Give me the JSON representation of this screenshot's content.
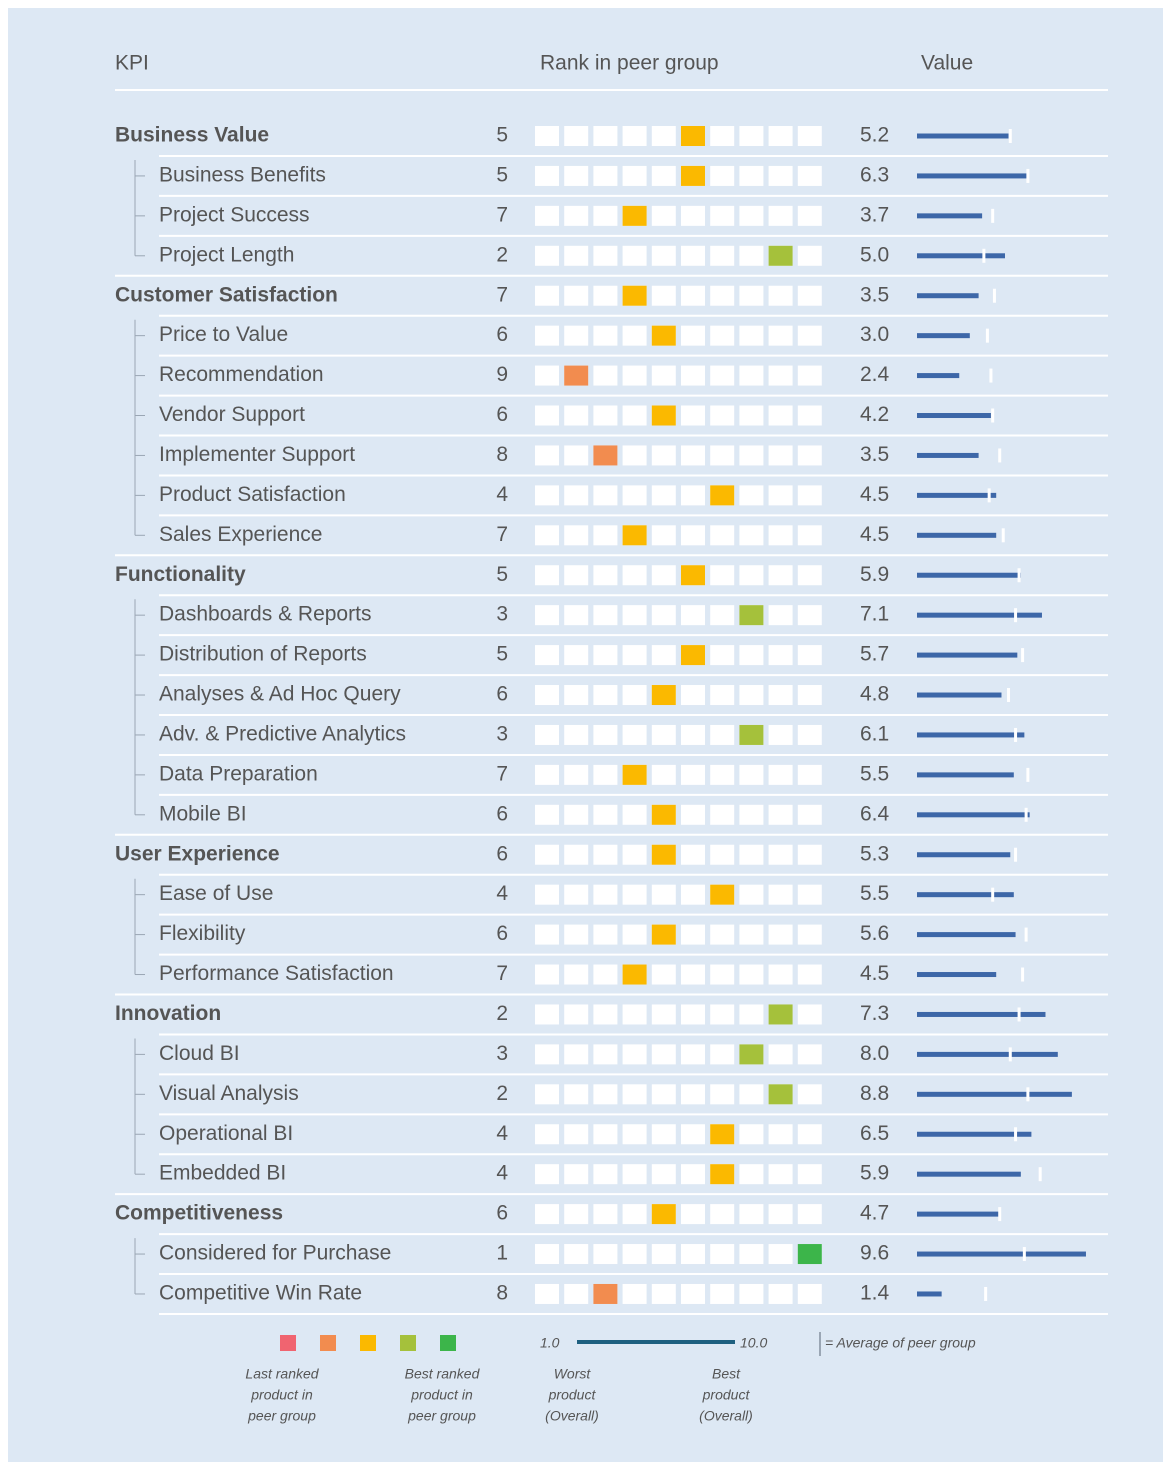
{
  "header": {
    "kpi": "KPI",
    "rank": "Rank in peer group",
    "value": "Value"
  },
  "rows": [
    {
      "label": "Business Value",
      "group": true,
      "rank": 5,
      "color": "#fbb900",
      "value": 5.2,
      "value_label": "5.2",
      "peer_avg": 5.3
    },
    {
      "label": "Business Benefits",
      "group": false,
      "rank": 5,
      "color": "#fbb900",
      "value": 6.3,
      "value_label": "6.3",
      "peer_avg": 6.3
    },
    {
      "label": "Project Success",
      "group": false,
      "rank": 7,
      "color": "#fbb900",
      "value": 3.7,
      "value_label": "3.7",
      "peer_avg": 4.3
    },
    {
      "label": "Project Length",
      "group": false,
      "rank": 2,
      "color": "#a5c13b",
      "value": 5,
      "value_label": "5.0",
      "peer_avg": 3.8
    },
    {
      "label": "Customer Satisfaction",
      "group": true,
      "rank": 7,
      "color": "#fbb900",
      "value": 3.5,
      "value_label": "3.5",
      "peer_avg": 4.4
    },
    {
      "label": "Price to Value",
      "group": false,
      "rank": 6,
      "color": "#fbb900",
      "value": 3,
      "value_label": "3.0",
      "peer_avg": 4.0
    },
    {
      "label": "Recommendation",
      "group": false,
      "rank": 9,
      "color": "#f28c4f",
      "value": 2.4,
      "value_label": "2.4",
      "peer_avg": 4.2
    },
    {
      "label": "Vendor Support",
      "group": false,
      "rank": 6,
      "color": "#fbb900",
      "value": 4.2,
      "value_label": "4.2",
      "peer_avg": 4.3
    },
    {
      "label": "Implementer Support",
      "group": false,
      "rank": 8,
      "color": "#f28c4f",
      "value": 3.5,
      "value_label": "3.5",
      "peer_avg": 4.7
    },
    {
      "label": "Product Satisfaction",
      "group": false,
      "rank": 4,
      "color": "#fbb900",
      "value": 4.5,
      "value_label": "4.5",
      "peer_avg": 4.1
    },
    {
      "label": "Sales Experience",
      "group": false,
      "rank": 7,
      "color": "#fbb900",
      "value": 4.5,
      "value_label": "4.5",
      "peer_avg": 4.9
    },
    {
      "label": "Functionality",
      "group": true,
      "rank": 5,
      "color": "#fbb900",
      "value": 5.9,
      "value_label": "5.9",
      "peer_avg": 5.8
    },
    {
      "label": "Dashboards & Reports",
      "group": false,
      "rank": 3,
      "color": "#a5c13b",
      "value": 7.1,
      "value_label": "7.1",
      "peer_avg": 5.6
    },
    {
      "label": "Distribution of Reports",
      "group": false,
      "rank": 5,
      "color": "#fbb900",
      "value": 5.7,
      "value_label": "5.7",
      "peer_avg": 6.0
    },
    {
      "label": "Analyses & Ad Hoc Query",
      "group": false,
      "rank": 6,
      "color": "#fbb900",
      "value": 4.8,
      "value_label": "4.8",
      "peer_avg": 5.2
    },
    {
      "label": "Adv. & Predictive Analytics",
      "group": false,
      "rank": 3,
      "color": "#a5c13b",
      "value": 6.1,
      "value_label": "6.1",
      "peer_avg": 5.6
    },
    {
      "label": "Data Preparation",
      "group": false,
      "rank": 7,
      "color": "#fbb900",
      "value": 5.5,
      "value_label": "5.5",
      "peer_avg": 6.3
    },
    {
      "label": "Mobile BI",
      "group": false,
      "rank": 6,
      "color": "#fbb900",
      "value": 6.4,
      "value_label": "6.4",
      "peer_avg": 6.2
    },
    {
      "label": "User Experience",
      "group": true,
      "rank": 6,
      "color": "#fbb900",
      "value": 5.3,
      "value_label": "5.3",
      "peer_avg": 5.6
    },
    {
      "label": "Ease of Use",
      "group": false,
      "rank": 4,
      "color": "#fbb900",
      "value": 5.5,
      "value_label": "5.5",
      "peer_avg": 4.3
    },
    {
      "label": "Flexibility",
      "group": false,
      "rank": 6,
      "color": "#fbb900",
      "value": 5.6,
      "value_label": "5.6",
      "peer_avg": 6.2
    },
    {
      "label": "Performance Satisfaction",
      "group": false,
      "rank": 7,
      "color": "#fbb900",
      "value": 4.5,
      "value_label": "4.5",
      "peer_avg": 6.0
    },
    {
      "label": "Innovation",
      "group": true,
      "rank": 2,
      "color": "#a5c13b",
      "value": 7.3,
      "value_label": "7.3",
      "peer_avg": 5.8
    },
    {
      "label": "Cloud BI",
      "group": false,
      "rank": 3,
      "color": "#a5c13b",
      "value": 8,
      "value_label": "8.0",
      "peer_avg": 5.3
    },
    {
      "label": "Visual Analysis",
      "group": false,
      "rank": 2,
      "color": "#a5c13b",
      "value": 8.8,
      "value_label": "8.8",
      "peer_avg": 6.3
    },
    {
      "label": "Operational BI",
      "group": false,
      "rank": 4,
      "color": "#fbb900",
      "value": 6.5,
      "value_label": "6.5",
      "peer_avg": 5.6
    },
    {
      "label": "Embedded BI",
      "group": false,
      "rank": 4,
      "color": "#fbb900",
      "value": 5.9,
      "value_label": "5.9",
      "peer_avg": 7.0
    },
    {
      "label": "Competitiveness",
      "group": true,
      "rank": 6,
      "color": "#fbb900",
      "value": 4.7,
      "value_label": "4.7",
      "peer_avg": 4.7
    },
    {
      "label": "Considered for Purchase",
      "group": false,
      "rank": 1,
      "color": "#3cb54a",
      "value": 9.6,
      "value_label": "9.6",
      "peer_avg": 6.1
    },
    {
      "label": "Competitive Win Rate",
      "group": false,
      "rank": 8,
      "color": "#f28c4f",
      "value": 1.4,
      "value_label": "1.4",
      "peer_avg": 3.9
    }
  ],
  "legend": {
    "rank_colors": [
      "#f06470",
      "#f28c4f",
      "#fbb900",
      "#a5c13b",
      "#3cb54a"
    ],
    "last": [
      "Last ranked",
      "product in",
      "peer group"
    ],
    "best": [
      "Best ranked",
      "product in",
      "peer group"
    ],
    "scale_min": {
      "value": 1,
      "label": "1.0"
    },
    "scale_max": {
      "value": 10,
      "label": "10.0"
    },
    "worst_caption": [
      "Worst",
      "product",
      "(Overall)"
    ],
    "best_caption": [
      "Best",
      "product",
      "(Overall)"
    ],
    "avg_caption": "= Average of peer group"
  }
}
